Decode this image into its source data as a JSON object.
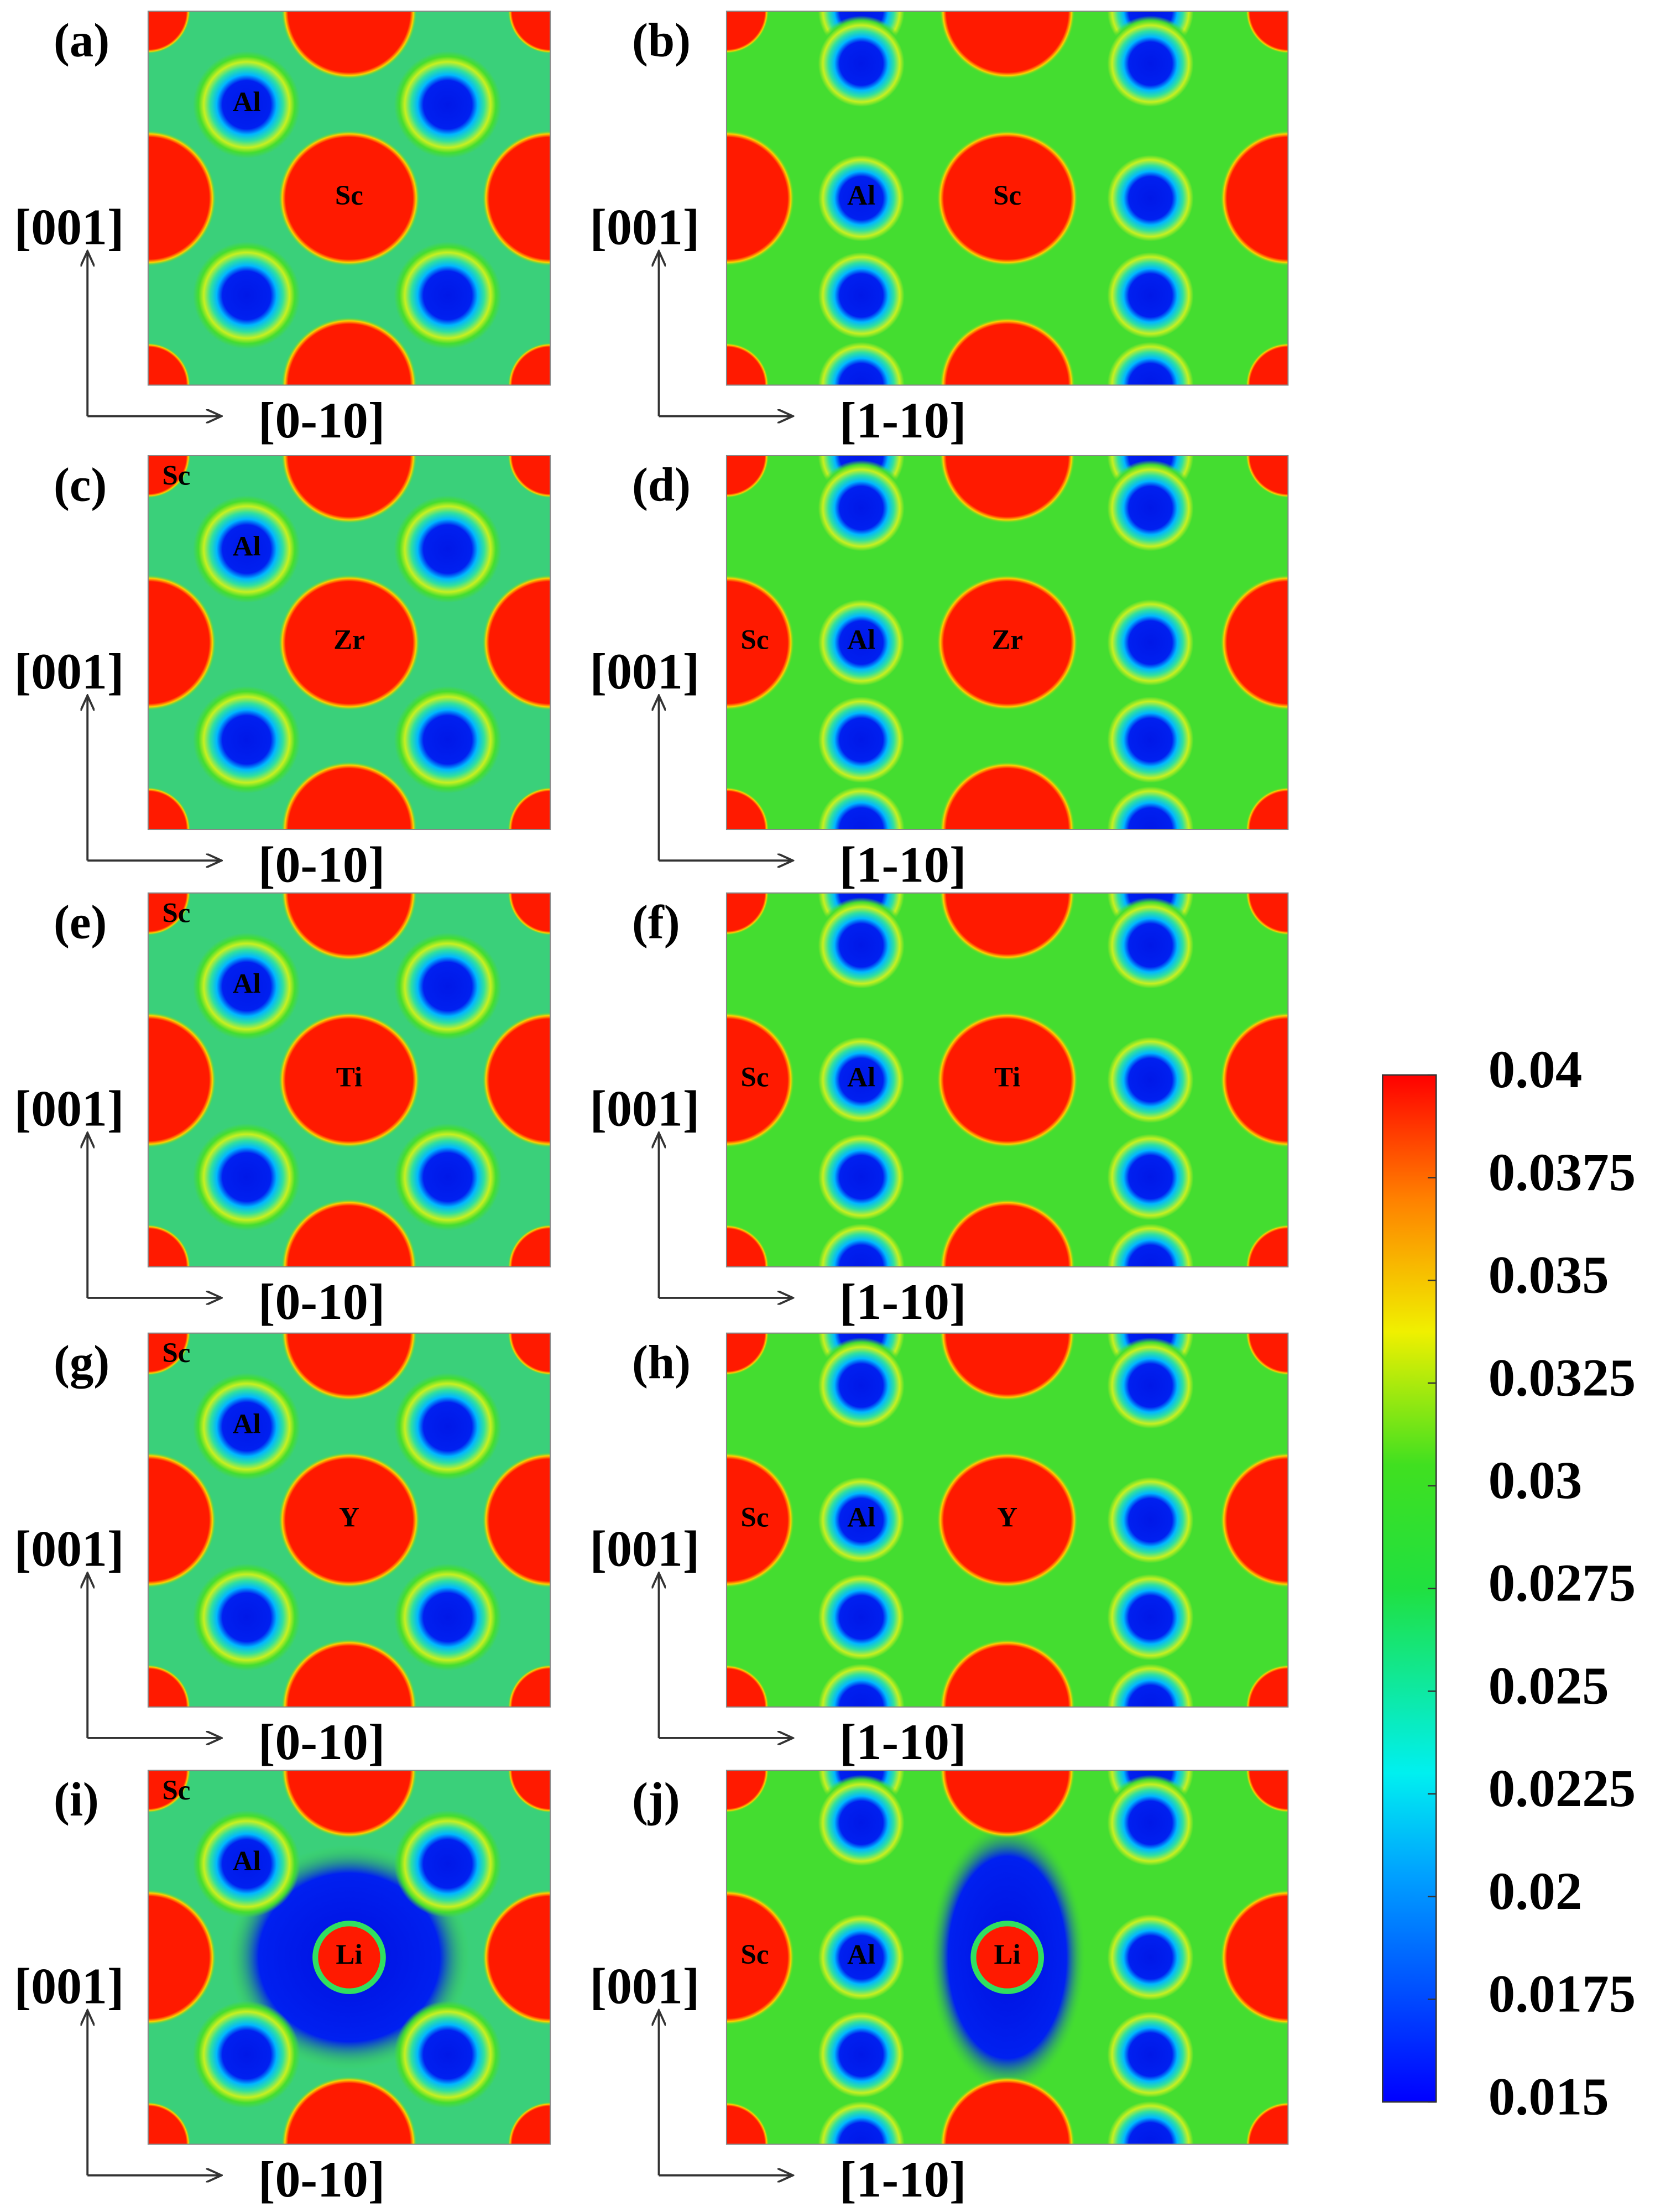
{
  "panels": [
    {
      "label": "(a)",
      "y_axis": "[001]",
      "x_axis": "[0-10]",
      "center": "Sc",
      "al": "Al"
    },
    {
      "label": "(b)",
      "y_axis": "[001]",
      "x_axis": "[1-10]",
      "center": "Sc",
      "al": "Al"
    },
    {
      "label": "(c)",
      "y_axis": "[001]",
      "x_axis": "[0-10]",
      "center": "Zr",
      "al": "Al",
      "corner": "Sc"
    },
    {
      "label": "(d)",
      "y_axis": "[001]",
      "x_axis": "[1-10]",
      "center": "Zr",
      "al": "Al",
      "edge": "Sc"
    },
    {
      "label": "(e)",
      "y_axis": "[001]",
      "x_axis": "[0-10]",
      "center": "Ti",
      "al": "Al",
      "corner": "Sc"
    },
    {
      "label": "(f)",
      "y_axis": "[001]",
      "x_axis": "[1-10]",
      "center": "Ti",
      "al": "Al",
      "edge": "Sc"
    },
    {
      "label": "(g)",
      "y_axis": "[001]",
      "x_axis": "[0-10]",
      "center": "Y",
      "al": "Al",
      "corner": "Sc"
    },
    {
      "label": "(h)",
      "y_axis": "[001]",
      "x_axis": "[1-10]",
      "center": "Y",
      "al": "Al",
      "edge": "Sc"
    },
    {
      "label": "(i)",
      "y_axis": "[001]",
      "x_axis": "[0-10]",
      "center": "Li",
      "al": "Al",
      "corner": "Sc"
    },
    {
      "label": "(j)",
      "y_axis": "[001]",
      "x_axis": "[1-10]",
      "center": "Li",
      "al": "Al",
      "edge": "Sc"
    }
  ],
  "colorbar": {
    "ticks": [
      0.015,
      0.0175,
      0.02,
      0.0225,
      0.025,
      0.0275,
      0.03,
      0.0325,
      0.035,
      0.0375,
      0.04
    ]
  }
}
